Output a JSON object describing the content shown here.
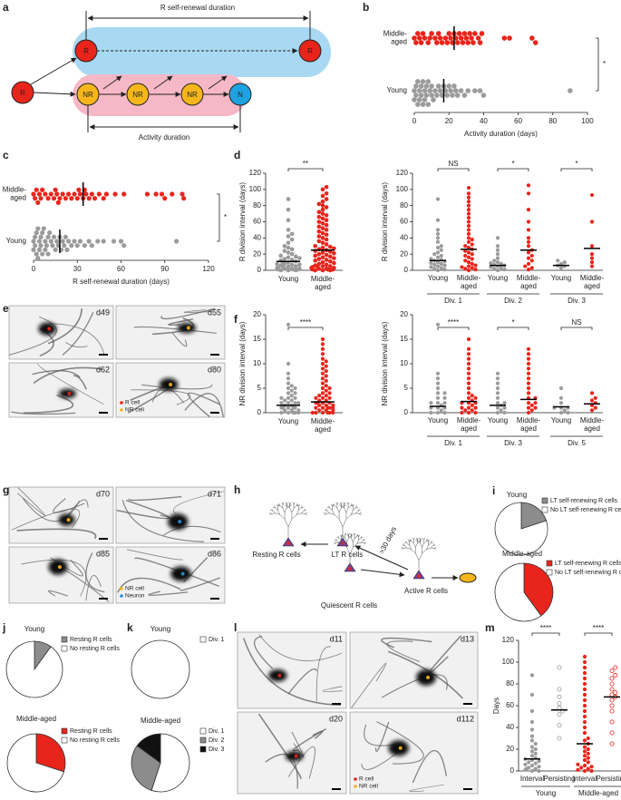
{
  "diagram_a": {
    "panel": "a",
    "top_label": "R self-renewal duration",
    "bottom_label": "Activity duration",
    "nodes": [
      "R",
      "R",
      "R",
      "NR",
      "NR",
      "NR",
      "N"
    ]
  },
  "diagram_h": {
    "panel": "h",
    "labels": [
      "Resting R cells",
      "LT R cells",
      ">30 days",
      "Active R cells",
      "Quiescent R cells"
    ]
  },
  "micrographs": [
    {
      "panel": "e",
      "frames": [
        "d49",
        "d55",
        "d62",
        "d80"
      ],
      "legend": [
        "R cell",
        "NR cell"
      ],
      "legend_colors": [
        "#e8251b",
        "#f5b61a"
      ]
    },
    {
      "panel": "g",
      "frames": [
        "d70",
        "d71",
        "d85",
        "d86"
      ],
      "legend": [
        "NR cell",
        "Neuron"
      ],
      "legend_colors": [
        "#f5b61a",
        "#2a8fd8"
      ]
    },
    {
      "panel": "l",
      "frames": [
        "d11",
        "d13",
        "d20",
        "d112"
      ],
      "legend": [
        "R cell",
        "NR cell"
      ],
      "legend_colors": [
        "#e8251b",
        "#f5b61a"
      ]
    }
  ],
  "chart_data": [
    {
      "panel": "b",
      "type": "strip",
      "orientation": "horizontal",
      "xlabel": "Activity duration (days)",
      "xlim": [
        0,
        100
      ],
      "xticks": [
        0,
        20,
        40,
        60,
        80,
        100
      ],
      "significance": "*",
      "series": [
        {
          "name": "Middle-aged",
          "color": "#e8251b",
          "median": 23,
          "values": [
            0,
            1,
            2,
            3,
            4,
            5,
            6,
            8,
            9,
            10,
            12,
            13,
            14,
            15,
            16,
            18,
            19,
            20,
            21,
            22,
            23,
            24,
            25,
            26,
            27,
            28,
            29,
            30,
            31,
            32,
            33,
            34,
            35,
            37,
            38,
            39,
            52,
            55,
            68,
            70
          ]
        },
        {
          "name": "Young",
          "color": "#9b9b9b",
          "median": 17,
          "values": [
            0,
            0,
            1,
            1,
            2,
            2,
            3,
            3,
            4,
            4,
            5,
            5,
            6,
            6,
            7,
            7,
            8,
            8,
            9,
            10,
            10,
            11,
            12,
            13,
            14,
            15,
            16,
            17,
            18,
            19,
            20,
            21,
            22,
            23,
            24,
            25,
            27,
            29,
            31,
            35,
            38,
            40,
            90
          ]
        }
      ]
    },
    {
      "panel": "c",
      "type": "strip",
      "orientation": "horizontal",
      "xlabel": "R self-renewal duration (days)",
      "xlim": [
        0,
        120
      ],
      "xticks": [
        0,
        30,
        60,
        90,
        120
      ],
      "significance": "*",
      "series": [
        {
          "name": "Middle-aged",
          "color": "#e8251b",
          "median": 34,
          "values": [
            0,
            1,
            2,
            3,
            4,
            5,
            6,
            8,
            10,
            12,
            14,
            15,
            16,
            17,
            18,
            20,
            22,
            24,
            26,
            28,
            30,
            31,
            32,
            34,
            35,
            36,
            38,
            40,
            42,
            45,
            48,
            50,
            56,
            62,
            78,
            84,
            88,
            90,
            95,
            102,
            103
          ]
        },
        {
          "name": "Young",
          "color": "#9b9b9b",
          "median": 18,
          "values": [
            0,
            0,
            1,
            1,
            2,
            2,
            3,
            3,
            4,
            4,
            5,
            5,
            6,
            6,
            7,
            8,
            8,
            9,
            10,
            10,
            11,
            12,
            13,
            14,
            15,
            16,
            17,
            18,
            19,
            20,
            21,
            22,
            23,
            24,
            26,
            28,
            30,
            32,
            35,
            38,
            40,
            44,
            48,
            55,
            60,
            62,
            98
          ]
        }
      ]
    },
    {
      "panel": "d",
      "type": "strip",
      "orientation": "vertical",
      "ylabel": "R division interval (days)",
      "ylim": [
        0,
        120
      ],
      "yticks": [
        0,
        20,
        40,
        60,
        80,
        100,
        120
      ],
      "significance": "**",
      "series": [
        {
          "name": "Young",
          "color": "#9b9b9b",
          "median": 11,
          "values": [
            0,
            0,
            0,
            1,
            1,
            1,
            2,
            2,
            2,
            3,
            3,
            4,
            4,
            5,
            5,
            6,
            6,
            7,
            7,
            8,
            8,
            9,
            10,
            11,
            12,
            13,
            14,
            15,
            16,
            17,
            18,
            20,
            22,
            24,
            26,
            28,
            30,
            34,
            38,
            42,
            45,
            50,
            62,
            75,
            88
          ]
        },
        {
          "name": "Middle-aged",
          "color": "#e8251b",
          "median": 25,
          "values": [
            0,
            0,
            0,
            1,
            1,
            1,
            2,
            2,
            3,
            3,
            4,
            4,
            5,
            5,
            6,
            7,
            8,
            9,
            10,
            11,
            12,
            13,
            14,
            15,
            16,
            17,
            18,
            19,
            20,
            21,
            22,
            23,
            24,
            25,
            26,
            27,
            28,
            29,
            30,
            32,
            34,
            36,
            38,
            40,
            42,
            44,
            46,
            48,
            50,
            52,
            54,
            56,
            58,
            60,
            62,
            64,
            66,
            68,
            70,
            72,
            75,
            78,
            80,
            82,
            85,
            88,
            92,
            95,
            100,
            103
          ]
        }
      ]
    },
    {
      "type": "grouped-strip",
      "ylabel": "R division interval (days)",
      "ylim": [
        0,
        120
      ],
      "yticks": [
        0,
        20,
        40,
        60,
        80,
        100,
        120
      ],
      "groups": [
        "Div. 1",
        "Div. 2",
        "Div. 3"
      ],
      "significance": [
        "NS",
        "*",
        "*"
      ],
      "series": [
        {
          "name": "Young",
          "color": "#9b9b9b",
          "medians": [
            12,
            6,
            6
          ],
          "values": [
            [
              0,
              1,
              2,
              3,
              4,
              5,
              6,
              7,
              8,
              9,
              10,
              11,
              12,
              13,
              14,
              16,
              18,
              20,
              22,
              25,
              28,
              30,
              35,
              40,
              45,
              50,
              62,
              88
            ],
            [
              0,
              1,
              2,
              3,
              4,
              5,
              6,
              7,
              8,
              9,
              10,
              12,
              15,
              20,
              25,
              30,
              40
            ],
            [
              3,
              5,
              6,
              8,
              10,
              12
            ]
          ]
        },
        {
          "name": "Middle-aged",
          "color": "#e8251b",
          "medians": [
            26,
            25,
            27
          ],
          "values": [
            [
              0,
              1,
              2,
              3,
              4,
              5,
              6,
              8,
              10,
              12,
              14,
              16,
              18,
              20,
              22,
              24,
              26,
              28,
              30,
              32,
              35,
              38,
              40,
              45,
              50,
              55,
              60,
              65,
              70,
              75,
              80,
              85,
              90,
              95,
              102
            ],
            [
              1,
              3,
              5,
              8,
              12,
              15,
              18,
              22,
              25,
              30,
              35,
              40,
              50,
              60,
              75,
              95,
              105
            ],
            [
              5,
              10,
              15,
              20,
              30,
              60,
              93
            ]
          ]
        }
      ]
    },
    {
      "panel": "f",
      "type": "strip",
      "orientation": "vertical",
      "ylabel": "NR division interval (days)",
      "ylim": [
        0,
        20
      ],
      "yticks": [
        0,
        5,
        10,
        15,
        20
      ],
      "significance": "****",
      "series": [
        {
          "name": "Young",
          "color": "#9b9b9b",
          "median": 1.5,
          "values": [
            0,
            0,
            0,
            0,
            0,
            0.5,
            0.5,
            0.5,
            1,
            1,
            1,
            1,
            1,
            1,
            1.5,
            1.5,
            2,
            2,
            2,
            2,
            2.5,
            2.5,
            3,
            3,
            3,
            3.5,
            4,
            4,
            4.5,
            5,
            5,
            5.5,
            6,
            7,
            8,
            10,
            18
          ]
        },
        {
          "name": "Middle-aged",
          "color": "#e8251b",
          "median": 2.2,
          "values": [
            0,
            0,
            0,
            0,
            0,
            0,
            0.5,
            0.5,
            0.5,
            1,
            1,
            1,
            1,
            1,
            1,
            1.5,
            1.5,
            1.5,
            2,
            2,
            2,
            2,
            2,
            2.5,
            2.5,
            3,
            3,
            3,
            3.5,
            3.5,
            4,
            4,
            4.5,
            5,
            5,
            5.5,
            6,
            6.5,
            7,
            7.5,
            8,
            8.5,
            9,
            9.5,
            10,
            10.5,
            11,
            12,
            13,
            14,
            15
          ]
        }
      ]
    },
    {
      "type": "grouped-strip",
      "ylabel": "NR division interval (days)",
      "ylim": [
        0,
        20
      ],
      "yticks": [
        0,
        5,
        10,
        15,
        20
      ],
      "groups": [
        "Div. 1",
        "Div. 3",
        "Div. 5"
      ],
      "significance": [
        "****",
        "*",
        "NS"
      ],
      "series": [
        {
          "name": "Young",
          "color": "#9b9b9b",
          "medians": [
            1.3,
            1.5,
            1.2
          ],
          "values": [
            [
              0,
              0,
              0,
              0.5,
              1,
              1,
              1,
              1.5,
              2,
              2,
              2,
              3,
              3,
              4,
              4,
              5,
              6,
              7,
              8,
              18
            ],
            [
              0,
              0,
              0.5,
              1,
              1,
              1.5,
              2,
              2,
              3,
              4,
              5,
              6,
              7,
              8
            ],
            [
              0,
              0,
              0.5,
              1,
              1,
              1,
              2,
              3,
              5
            ]
          ]
        },
        {
          "name": "Middle-aged",
          "color": "#e8251b",
          "medians": [
            2.3,
            2.7,
            1.8
          ],
          "values": [
            [
              0,
              0,
              0,
              0.5,
              0.5,
              1,
              1,
              1,
              1.5,
              2,
              2,
              2,
              2.5,
              3,
              3,
              3.5,
              4,
              5,
              6,
              7,
              8,
              9,
              10,
              11,
              12,
              13,
              15
            ],
            [
              0,
              0.5,
              1,
              1,
              1.5,
              2,
              2,
              3,
              3,
              4,
              5,
              6,
              7,
              8,
              9,
              10,
              11,
              12,
              13
            ],
            [
              0.5,
              1,
              1.5,
              2,
              2.5,
              3,
              4
            ]
          ]
        }
      ]
    },
    {
      "panel": "i",
      "type": "pie",
      "title": "Young",
      "labels": [
        "LT self-renewing R cells",
        "No LT self-renewing R cells"
      ],
      "values": [
        20,
        80
      ],
      "colors": [
        "#8c8c8c",
        "#ffffff"
      ]
    },
    {
      "type": "pie",
      "title": "Middle-aged",
      "labels": [
        "LT self-renewing R cells",
        "No LT self-renewing R cells"
      ],
      "values": [
        40,
        60
      ],
      "colors": [
        "#e8251b",
        "#ffffff"
      ]
    },
    {
      "panel": "j",
      "type": "pie",
      "title": "Young",
      "labels": [
        "Resting R cells",
        "No resting R cells"
      ],
      "values": [
        10,
        90
      ],
      "colors": [
        "#8c8c8c",
        "#ffffff"
      ]
    },
    {
      "type": "pie",
      "title": "Middle-aged",
      "labels": [
        "Resting R cells",
        "No resting R cells"
      ],
      "values": [
        30,
        70
      ],
      "colors": [
        "#e8251b",
        "#ffffff"
      ]
    },
    {
      "panel": "k",
      "type": "pie",
      "title": "Young",
      "labels": [
        "Div. 1"
      ],
      "values": [
        100
      ],
      "colors": [
        "#ffffff"
      ]
    },
    {
      "type": "pie",
      "title": "Middle-aged",
      "labels": [
        "Div. 1",
        "Div. 2",
        "Div. 3"
      ],
      "values": [
        55,
        30,
        15
      ],
      "colors": [
        "#ffffff",
        "#8c8c8c",
        "#111111"
      ]
    },
    {
      "panel": "m",
      "type": "grouped-strip",
      "ylabel": "Days",
      "ylim": [
        0,
        120
      ],
      "yticks": [
        0,
        20,
        40,
        60,
        80,
        100,
        120
      ],
      "groups": [
        "Young",
        "Middle-aged"
      ],
      "group_colors": [
        "#9b9b9b",
        "#e8251b"
      ],
      "significance": [
        "****",
        "****"
      ],
      "series": [
        {
          "name": "Interval",
          "marker": "filled",
          "medians": [
            11,
            25
          ],
          "values": [
            [
              0,
              0,
              1,
              1,
              2,
              2,
              3,
              4,
              5,
              6,
              7,
              8,
              9,
              10,
              11,
              12,
              14,
              16,
              18,
              20,
              22,
              25,
              28,
              32,
              38,
              45,
              55,
              70,
              88
            ],
            [
              0,
              0,
              1,
              2,
              3,
              4,
              5,
              6,
              8,
              10,
              12,
              14,
              16,
              18,
              20,
              22,
              25,
              28,
              30,
              35,
              40,
              45,
              50,
              55,
              60,
              65,
              70,
              75,
              80,
              85,
              90,
              95,
              100,
              105
            ]
          ]
        },
        {
          "name": "Persisting",
          "marker": "open",
          "medians": [
            56,
            68
          ],
          "values": [
            [
              30,
              42,
              52,
              55,
              58,
              62,
              68,
              75,
              95
            ],
            [
              25,
              35,
              45,
              55,
              60,
              65,
              68,
              70,
              72,
              75,
              80,
              85,
              88,
              92,
              95
            ]
          ]
        }
      ]
    }
  ]
}
